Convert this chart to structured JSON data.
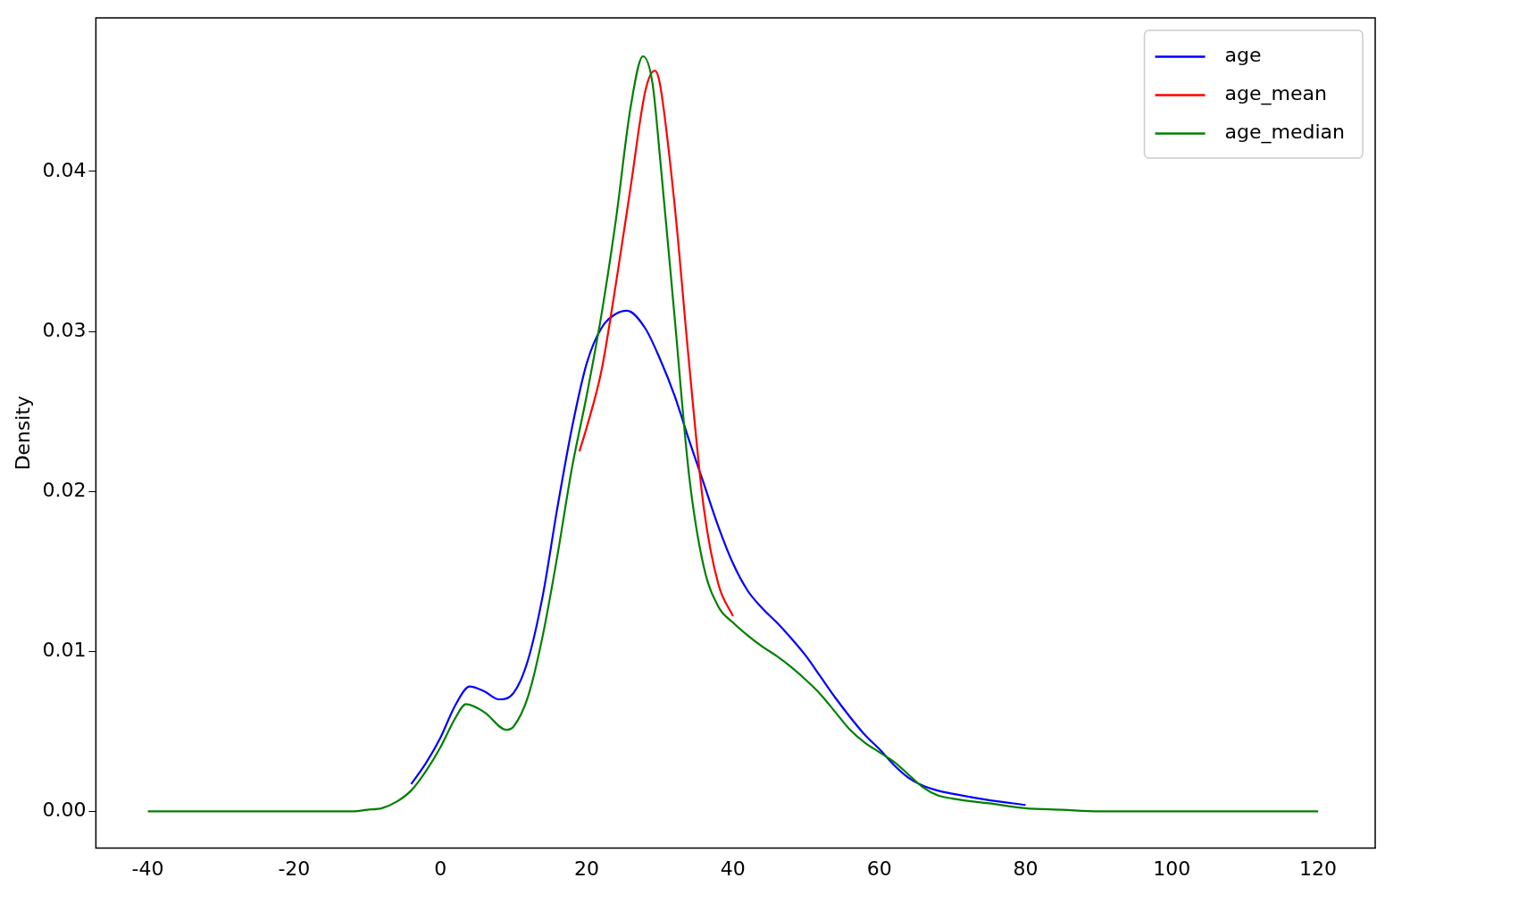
{
  "chart_data": {
    "type": "line",
    "ylabel": "Density",
    "legend": "top right",
    "grid": false,
    "marker": "none",
    "line_style": "solid",
    "xlim": [
      -47.1,
      127.8
    ],
    "ylim": [
      -0.0023,
      0.0496
    ],
    "xticks": [
      -40,
      -20,
      0,
      20,
      40,
      60,
      80,
      100,
      120
    ],
    "yticks": [
      {
        "value": 0,
        "label": "0.00"
      },
      {
        "value": 0.01,
        "label": "0.01"
      },
      {
        "value": 0.02,
        "label": "0.02"
      },
      {
        "value": 0.03,
        "label": "0.03"
      },
      {
        "value": 0.04,
        "label": "0.04"
      }
    ],
    "series": [
      {
        "name": "age",
        "color": "#0000ff",
        "x": [
          -4,
          -2,
          0,
          2,
          4,
          6,
          8,
          10,
          12,
          14,
          16,
          18,
          20,
          22,
          24,
          25.5,
          28,
          30,
          32,
          34,
          36,
          38,
          40,
          42,
          44,
          46,
          48,
          50,
          52,
          54,
          56,
          58,
          60,
          62,
          64,
          66,
          68,
          70,
          75,
          80
        ],
        "values": [
          0.0017,
          0.003,
          0.0046,
          0.0066,
          0.0078,
          0.0075,
          0.007,
          0.0074,
          0.0095,
          0.0135,
          0.019,
          0.024,
          0.028,
          0.0302,
          0.0311,
          0.0313,
          0.0302,
          0.0283,
          0.026,
          0.0232,
          0.0205,
          0.0178,
          0.0155,
          0.0138,
          0.0127,
          0.0118,
          0.0108,
          0.0097,
          0.0084,
          0.0071,
          0.0059,
          0.0048,
          0.0039,
          0.0029,
          0.0021,
          0.0016,
          0.0013,
          0.0011,
          0.0007,
          0.0004
        ]
      },
      {
        "name": "age_mean",
        "color": "#ff0000",
        "x": [
          19,
          20,
          22,
          24,
          26,
          28,
          29.3,
          30,
          32,
          34,
          36,
          38,
          40
        ],
        "values": [
          0.0225,
          0.024,
          0.0275,
          0.033,
          0.039,
          0.045,
          0.0463,
          0.0455,
          0.038,
          0.028,
          0.019,
          0.0142,
          0.0122
        ]
      },
      {
        "name": "age_median",
        "color": "#008000",
        "x": [
          -40,
          -20,
          -12,
          -10,
          -8,
          -6,
          -4,
          -2,
          0,
          2,
          3.5,
          6,
          9,
          10,
          12,
          14,
          16,
          18,
          20,
          22,
          24,
          26,
          27.7,
          29,
          30,
          32,
          34,
          36,
          38,
          40,
          42,
          44,
          46,
          48,
          50,
          52,
          54,
          56,
          58,
          60,
          62,
          64,
          66,
          68,
          70,
          75,
          80,
          85,
          90,
          120
        ],
        "values": [
          0,
          0,
          0,
          0.0001,
          0.0002,
          0.0006,
          0.0013,
          0.0025,
          0.004,
          0.0058,
          0.0067,
          0.0062,
          0.0051,
          0.0053,
          0.0072,
          0.011,
          0.016,
          0.0215,
          0.026,
          0.031,
          0.037,
          0.044,
          0.0472,
          0.0455,
          0.041,
          0.031,
          0.021,
          0.0153,
          0.0128,
          0.0118,
          0.011,
          0.0103,
          0.0097,
          0.009,
          0.0082,
          0.0073,
          0.0062,
          0.0051,
          0.0043,
          0.0037,
          0.0031,
          0.0023,
          0.0015,
          0.001,
          0.0008,
          0.0005,
          0.0002,
          0.0001,
          0,
          0
        ]
      }
    ]
  }
}
